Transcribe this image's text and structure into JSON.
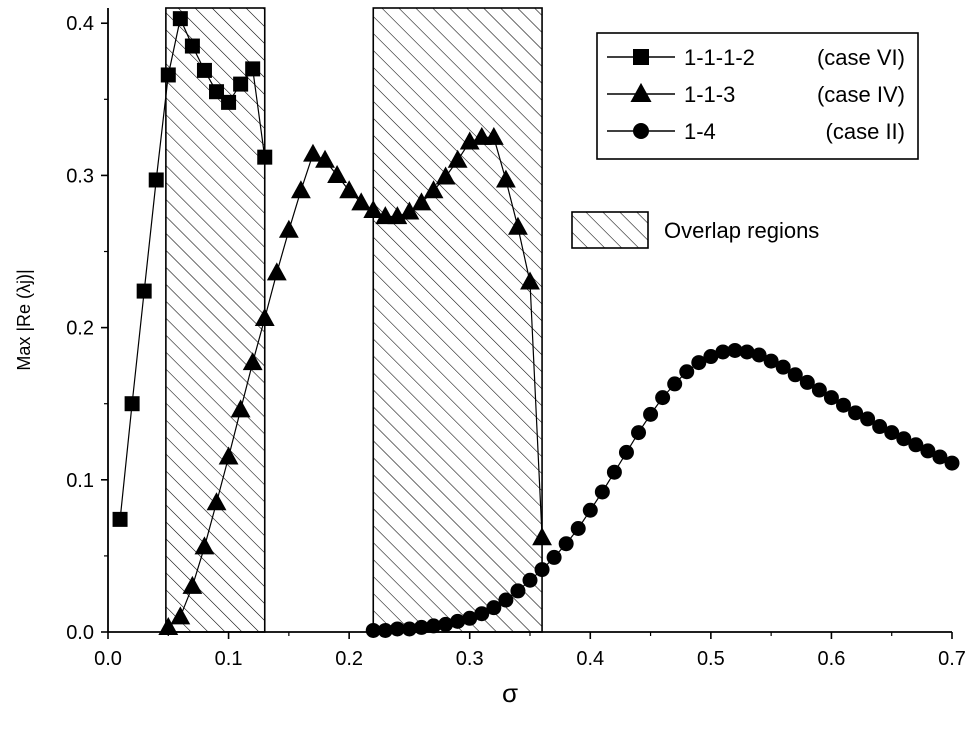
{
  "chart_data": {
    "type": "scatter",
    "xlabel": "σ",
    "ylabel": "Max |Re (λj)|",
    "xlim": [
      0.0,
      0.7
    ],
    "ylim": [
      0.0,
      0.41
    ],
    "xticks": [
      "0.0",
      "0.1",
      "0.2",
      "0.3",
      "0.4",
      "0.5",
      "0.6",
      "0.7"
    ],
    "yticks": [
      "0.0",
      "0.1",
      "0.2",
      "0.3",
      "0.4"
    ],
    "grid": false,
    "legend_position": "top-right",
    "overlap_regions": [
      [
        0.048,
        0.13
      ],
      [
        0.22,
        0.36
      ]
    ],
    "overlap_label": "Overlap regions",
    "series": [
      {
        "name": "1-1-1-2 (case VI)",
        "marker": "square",
        "x": [
          0.01,
          0.02,
          0.03,
          0.04,
          0.05,
          0.06,
          0.07,
          0.08,
          0.09,
          0.1,
          0.11,
          0.12,
          0.13
        ],
        "y": [
          0.074,
          0.15,
          0.224,
          0.297,
          0.366,
          0.403,
          0.385,
          0.369,
          0.355,
          0.348,
          0.36,
          0.37,
          0.312
        ]
      },
      {
        "name": "1-1-3 (case IV)",
        "marker": "triangle",
        "x": [
          0.05,
          0.06,
          0.07,
          0.08,
          0.09,
          0.1,
          0.11,
          0.12,
          0.13,
          0.14,
          0.15,
          0.16,
          0.17,
          0.18,
          0.19,
          0.2,
          0.21,
          0.22,
          0.23,
          0.24,
          0.25,
          0.26,
          0.27,
          0.28,
          0.29,
          0.3,
          0.31,
          0.32,
          0.33,
          0.34,
          0.35,
          0.36
        ],
        "y": [
          0.003,
          0.01,
          0.03,
          0.056,
          0.085,
          0.115,
          0.146,
          0.177,
          0.206,
          0.236,
          0.264,
          0.29,
          0.314,
          0.31,
          0.3,
          0.29,
          0.282,
          0.277,
          0.273,
          0.273,
          0.276,
          0.282,
          0.29,
          0.299,
          0.31,
          0.322,
          0.325,
          0.325,
          0.297,
          0.266,
          0.23,
          0.062
        ]
      },
      {
        "name": "1-4 (case II)",
        "marker": "circle",
        "x": [
          0.22,
          0.23,
          0.24,
          0.25,
          0.26,
          0.27,
          0.28,
          0.29,
          0.3,
          0.31,
          0.32,
          0.33,
          0.34,
          0.35,
          0.36,
          0.37,
          0.38,
          0.39,
          0.4,
          0.41,
          0.42,
          0.43,
          0.44,
          0.45,
          0.46,
          0.47,
          0.48,
          0.49,
          0.5,
          0.51,
          0.52,
          0.53,
          0.54,
          0.55,
          0.56,
          0.57,
          0.58,
          0.59,
          0.6,
          0.61,
          0.62,
          0.63,
          0.64,
          0.65,
          0.66,
          0.67,
          0.68,
          0.69,
          0.7
        ],
        "y": [
          0.001,
          0.001,
          0.002,
          0.002,
          0.003,
          0.004,
          0.005,
          0.007,
          0.009,
          0.012,
          0.016,
          0.021,
          0.027,
          0.034,
          0.041,
          0.049,
          0.058,
          0.068,
          0.08,
          0.092,
          0.105,
          0.118,
          0.131,
          0.143,
          0.154,
          0.163,
          0.171,
          0.177,
          0.181,
          0.184,
          0.185,
          0.184,
          0.182,
          0.178,
          0.174,
          0.169,
          0.164,
          0.159,
          0.154,
          0.149,
          0.144,
          0.14,
          0.135,
          0.131,
          0.127,
          0.123,
          0.119,
          0.115,
          0.111
        ]
      }
    ]
  }
}
